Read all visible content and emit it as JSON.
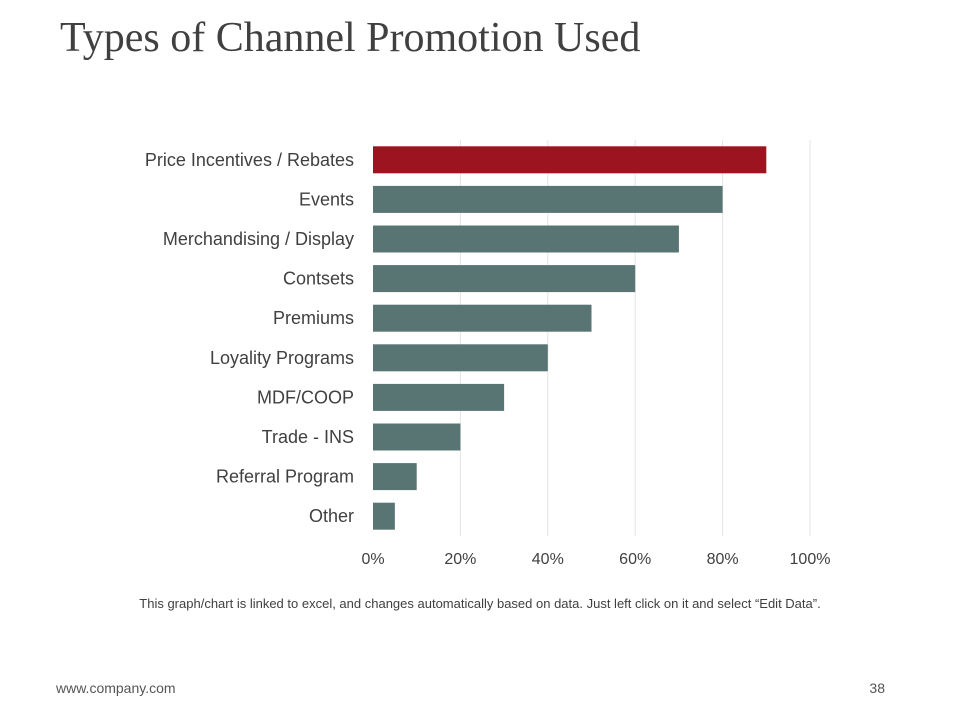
{
  "slide": {
    "title": "Types of Channel Promotion Used",
    "note": "This graph/chart is linked to excel, and changes automatically based on data. Just left click on it and select “Edit Data”.",
    "footer_url": "www.company.com",
    "page_number": "38"
  },
  "colors": {
    "highlight": "#9b141f",
    "bar": "#587574",
    "grid": "#e4e4e4",
    "text": "#404040"
  },
  "chart_data": {
    "type": "bar",
    "orientation": "horizontal",
    "categories": [
      "Price Incentives / Rebates",
      "Events",
      "Merchandising / Display",
      "Contsets",
      "Premiums",
      "Loyality Programs",
      "MDF/COOP",
      "Trade - INS",
      "Referral Program",
      "Other"
    ],
    "values": [
      90,
      80,
      70,
      60,
      50,
      40,
      30,
      20,
      10,
      5
    ],
    "highlight_index": 0,
    "xlim": [
      0,
      100
    ],
    "xticks": [
      0,
      20,
      40,
      60,
      80,
      100
    ],
    "xtick_labels": [
      "0%",
      "20%",
      "40%",
      "60%",
      "80%",
      "100%"
    ],
    "grid": "vertical",
    "legend": "none"
  }
}
